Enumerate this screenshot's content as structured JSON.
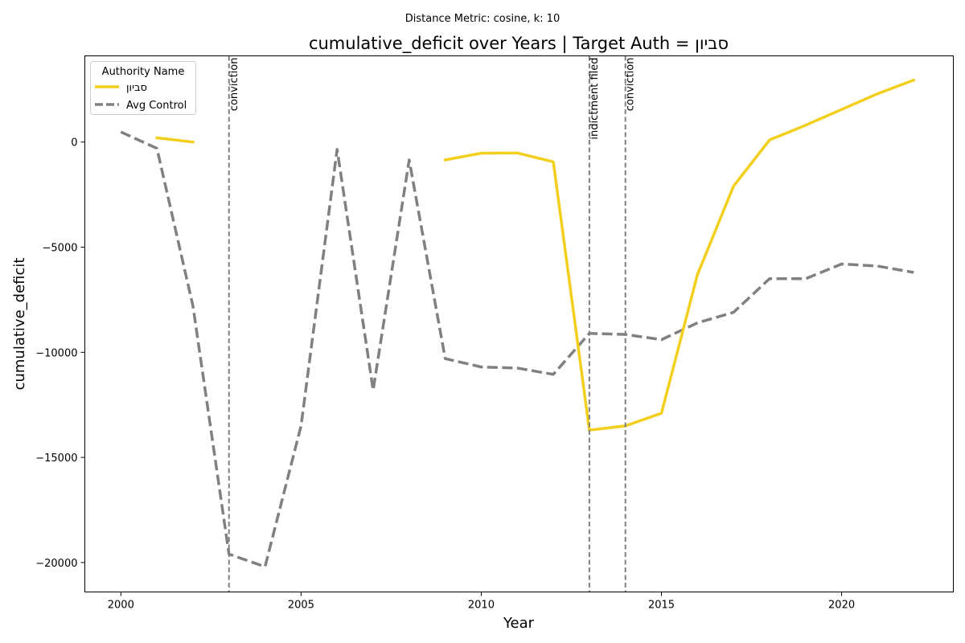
{
  "chart_data": {
    "type": "line",
    "subtitle": "Distance Metric: cosine, k: 10",
    "title": "cumulative_deficit over Years | Target Auth = סביון",
    "xlabel": "Year",
    "ylabel": "cumulative_deficit",
    "xlim": [
      1999,
      2023.1
    ],
    "ylim": [
      -21400,
      4100
    ],
    "x_ticks": [
      2000,
      2005,
      2010,
      2015,
      2020
    ],
    "y_ticks": [
      0,
      -5000,
      -10000,
      -15000,
      -20000
    ],
    "y_tick_labels": [
      "0",
      "−5000",
      "−10000",
      "−15000",
      "−20000"
    ],
    "legend": {
      "title": "Authority Name",
      "placement": "top-left"
    },
    "series": [
      {
        "name": "סביון",
        "color": "#f2cf1d",
        "style": "solid",
        "points": [
          [
            2001,
            200
          ],
          [
            2002,
            0
          ],
          [
            2009,
            -850
          ],
          [
            2010,
            -530
          ],
          [
            2011,
            -520
          ],
          [
            2012,
            -940
          ],
          [
            2013,
            -13700
          ],
          [
            2014,
            -13500
          ],
          [
            2015,
            -12900
          ],
          [
            2016,
            -6300
          ],
          [
            2017,
            -2100
          ],
          [
            2018,
            100
          ],
          [
            2019,
            800
          ],
          [
            2020,
            1550
          ],
          [
            2021,
            2300
          ],
          [
            2022,
            2950
          ]
        ]
      },
      {
        "name": "Avg Control",
        "color": "#808080",
        "style": "dashed",
        "points": [
          [
            2000,
            480
          ],
          [
            2001,
            -300
          ],
          [
            2002,
            -7800
          ],
          [
            2003,
            -19600
          ],
          [
            2004,
            -20200
          ],
          [
            2005,
            -13500
          ],
          [
            2006,
            -350
          ],
          [
            2007,
            -11800
          ],
          [
            2008,
            -850
          ],
          [
            2009,
            -10300
          ],
          [
            2010,
            -10700
          ],
          [
            2011,
            -10750
          ],
          [
            2012,
            -11050
          ],
          [
            2013,
            -9100
          ],
          [
            2014,
            -9150
          ],
          [
            2015,
            -9400
          ],
          [
            2016,
            -8600
          ],
          [
            2017,
            -8100
          ],
          [
            2018,
            -6500
          ],
          [
            2019,
            -6500
          ],
          [
            2020,
            -5800
          ],
          [
            2021,
            -5900
          ],
          [
            2022,
            -6200
          ]
        ]
      }
    ],
    "events": [
      {
        "x": 2003,
        "label": "conviction"
      },
      {
        "x": 2013,
        "label": "indictment filed"
      },
      {
        "x": 2014,
        "label": "conviction"
      }
    ]
  }
}
